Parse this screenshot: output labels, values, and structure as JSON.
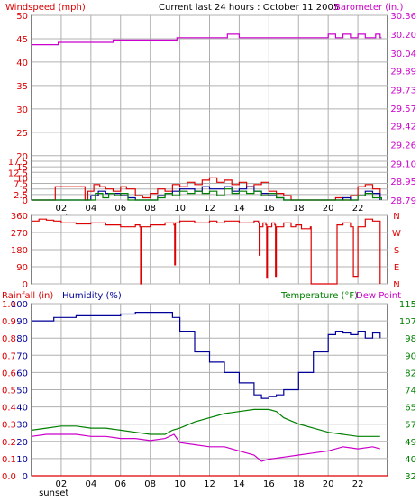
{
  "header": {
    "title": "Current last 24 hours : October 11 2005",
    "left_label": "Windspeed (mph)",
    "right_label": "Barometer (in.)"
  },
  "colors": {
    "red": "#dd0000",
    "magenta": "#cc00cc",
    "green": "#008000",
    "blue": "#000099",
    "grid": "#b0b0b0",
    "frame": "#000000"
  },
  "chart_data": [
    {
      "type": "line",
      "name": "wind-barometer",
      "xlabel_ticks": [
        "02",
        "04",
        "06",
        "08",
        "10",
        "12",
        "14",
        "16",
        "18",
        "20",
        "22"
      ],
      "x_annotation": "sunset",
      "left_axis": {
        "label": "Windspeed (mph)",
        "ticks": [
          0,
          2.5,
          5,
          7.5,
          10,
          12.5,
          15,
          17.5,
          20,
          25,
          30,
          35,
          40,
          45,
          50
        ]
      },
      "right_axis": {
        "label": "Barometer (in.)",
        "ticks": [
          28.79,
          28.95,
          29.1,
          29.26,
          29.42,
          29.57,
          29.73,
          29.89,
          30.04,
          30.2,
          30.36
        ]
      },
      "xlim": [
        0,
        24
      ],
      "series": [
        {
          "color": "magenta",
          "axis": "right",
          "x": [
            0,
            1,
            1.8,
            5.0,
            5.5,
            9.0,
            9.8,
            12.8,
            13.2,
            14.0,
            19.5,
            20.0,
            20.5,
            21.0,
            21.5,
            22.0,
            22.5,
            23.2,
            23.5,
            23.6
          ],
          "y": [
            30.11,
            30.11,
            30.13,
            30.13,
            30.15,
            30.15,
            30.17,
            30.17,
            30.2,
            30.17,
            30.17,
            30.2,
            30.17,
            30.2,
            30.17,
            30.2,
            30.17,
            30.2,
            30.17,
            30.17
          ]
        },
        {
          "color": "red",
          "axis": "left",
          "x": [
            0,
            1.5,
            1.6,
            3.6,
            3.8,
            4.2,
            4.6,
            5.0,
            5.5,
            6.0,
            6.4,
            7.0,
            7.5,
            8.0,
            8.5,
            9.0,
            9.5,
            10.0,
            10.5,
            11.0,
            11.5,
            12.0,
            12.5,
            13.0,
            13.5,
            14.0,
            14.5,
            15.0,
            15.5,
            16.0,
            16.5,
            17.0,
            17.5,
            18.5,
            19.0,
            20.0,
            20.5,
            21.0,
            21.5,
            22.0,
            22.5,
            23.0,
            23.5
          ],
          "y": [
            0,
            0,
            6,
            0,
            4,
            7,
            6,
            5,
            4,
            6,
            5,
            2,
            1,
            3,
            5,
            4,
            7,
            6,
            8,
            7,
            9,
            10,
            8,
            9,
            7,
            8,
            6,
            7,
            8,
            4,
            3,
            2,
            0,
            0,
            0,
            0,
            1,
            0,
            2,
            6,
            7,
            5,
            1
          ]
        },
        {
          "color": "blue",
          "axis": "left",
          "x": [
            0,
            3.6,
            4.0,
            4.5,
            5.0,
            5.5,
            6.0,
            6.5,
            7.0,
            8.0,
            8.5,
            9.0,
            9.5,
            10.0,
            10.5,
            11.0,
            11.5,
            12.0,
            12.5,
            13.0,
            13.5,
            14.0,
            14.5,
            15.0,
            15.5,
            16.0,
            16.5,
            17.0,
            19.0,
            20.5,
            21.0,
            21.5,
            22.0,
            22.5,
            23.0,
            23.5
          ],
          "y": [
            0,
            0,
            2,
            4,
            3,
            3,
            2,
            1,
            0,
            0,
            2,
            3,
            4,
            5,
            5,
            4,
            6,
            5,
            5,
            6,
            4,
            5,
            6,
            4,
            3,
            2,
            1,
            0,
            0,
            0,
            1,
            0,
            2,
            4,
            3,
            0
          ]
        },
        {
          "color": "green",
          "axis": "left",
          "x": [
            0,
            4.0,
            4.3,
            4.8,
            5.2,
            5.6,
            6.0,
            6.5,
            8.0,
            8.5,
            9.0,
            9.5,
            10.0,
            10.5,
            11.0,
            11.5,
            12.0,
            12.5,
            13.0,
            13.5,
            14.0,
            14.5,
            15.0,
            15.5,
            16.0,
            16.5,
            17.0,
            20.0,
            21.5,
            22.0,
            22.5,
            23.0,
            23.6
          ],
          "y": [
            0,
            0,
            3,
            1,
            3,
            2,
            3,
            0,
            0,
            1,
            3,
            2,
            4,
            3,
            4,
            3,
            4,
            2,
            5,
            3,
            4,
            3,
            4,
            2,
            3,
            1,
            0,
            0,
            0,
            2,
            3,
            1,
            0
          ]
        }
      ]
    },
    {
      "type": "line",
      "name": "wind-direction",
      "left_axis": {
        "ticks": [
          0,
          90,
          180,
          270,
          360
        ]
      },
      "right_axis": {
        "ticks": [
          "N",
          "E",
          "S",
          "W",
          "N"
        ]
      },
      "xlim": [
        0,
        24
      ],
      "series": [
        {
          "color": "red",
          "x": [
            0,
            0.5,
            1.0,
            1.5,
            2.0,
            3.0,
            4.0,
            5.0,
            6.0,
            7.0,
            7.3,
            7.35,
            7.4,
            8.0,
            9.0,
            9.6,
            9.65,
            9.7,
            10.0,
            11.0,
            12.0,
            12.5,
            13.0,
            14.0,
            15.0,
            15.3,
            15.35,
            15.4,
            15.6,
            15.8,
            15.85,
            15.9,
            16.2,
            16.4,
            16.45,
            16.5,
            17.0,
            17.5,
            17.8,
            18.2,
            18.8,
            18.85,
            19.5,
            20.0,
            20.5,
            20.6,
            21.0,
            21.5,
            21.7,
            22.0,
            22.5,
            23.0,
            23.5
          ],
          "y": [
            330,
            340,
            335,
            330,
            320,
            315,
            320,
            310,
            300,
            310,
            300,
            0,
            300,
            310,
            320,
            310,
            100,
            320,
            330,
            320,
            330,
            320,
            330,
            320,
            330,
            320,
            150,
            300,
            320,
            310,
            30,
            300,
            320,
            310,
            40,
            300,
            320,
            300,
            310,
            290,
            300,
            0,
            0,
            0,
            0,
            310,
            320,
            300,
            40,
            300,
            340,
            330,
            0
          ]
        }
      ]
    },
    {
      "type": "line",
      "name": "rain-humidity-temperature",
      "left_axis_rain": {
        "label": "Rainfall (in)",
        "ticks": [
          0.0,
          0.1,
          0.2,
          0.3,
          0.4,
          0.5,
          0.6,
          0.7,
          0.8,
          0.9,
          1.0
        ]
      },
      "left_axis_humidity": {
        "label": "Humidity (%)",
        "ticks": [
          0,
          10,
          20,
          30,
          40,
          50,
          60,
          70,
          80,
          90,
          100
        ]
      },
      "right_axis": {
        "label": "Temperature (°F)",
        "label2": "Dew Point",
        "ticks": [
          32,
          40,
          49,
          57,
          65,
          74,
          82,
          90,
          98,
          107,
          115
        ]
      },
      "xlim": [
        0,
        24
      ],
      "series": [
        {
          "color": "blue",
          "axis": "humidity",
          "x": [
            0,
            1.5,
            3.0,
            5.0,
            6.0,
            7.0,
            8.0,
            9.0,
            9.5,
            10.0,
            11.0,
            12.0,
            13.0,
            14.0,
            15.0,
            15.5,
            16.0,
            16.5,
            17.0,
            18.0,
            19.0,
            20.0,
            20.5,
            21.0,
            21.5,
            22.0,
            22.5,
            23.0,
            23.5
          ],
          "y": [
            90,
            92,
            93,
            93,
            94,
            95,
            95,
            95,
            92,
            84,
            72,
            66,
            60,
            54,
            47,
            45,
            46,
            47,
            50,
            60,
            72,
            82,
            84,
            83,
            82,
            84,
            80,
            83,
            80
          ]
        },
        {
          "color": "green",
          "axis": "temperature",
          "x": [
            0,
            1.0,
            2.0,
            3.0,
            4.0,
            5.0,
            6.0,
            7.0,
            8.0,
            9.0,
            9.5,
            10.0,
            11.0,
            12.0,
            13.0,
            14.0,
            15.0,
            16.0,
            16.5,
            17.0,
            18.0,
            19.0,
            20.0,
            21.0,
            22.0,
            23.0,
            23.5
          ],
          "y": [
            54,
            55,
            56,
            56,
            55,
            55,
            54,
            53,
            52,
            52,
            54,
            55,
            58,
            60,
            62,
            63,
            64,
            64,
            63,
            60,
            57,
            55,
            53,
            52,
            51,
            51,
            51
          ]
        },
        {
          "color": "magenta",
          "axis": "temperature",
          "x": [
            0,
            1.0,
            2.0,
            3.0,
            4.0,
            5.0,
            6.0,
            7.0,
            8.0,
            9.0,
            9.6,
            10.0,
            11.0,
            12.0,
            13.0,
            14.0,
            15.0,
            15.5,
            16.0,
            17.0,
            18.0,
            19.0,
            20.0,
            21.0,
            22.0,
            23.0,
            23.5
          ],
          "y": [
            51,
            52,
            52,
            52,
            51,
            51,
            50,
            50,
            49,
            50,
            52,
            48,
            47,
            46,
            46,
            44,
            42,
            39,
            40,
            41,
            42,
            43,
            44,
            46,
            45,
            46,
            45
          ]
        },
        {
          "color": "red",
          "axis": "rain",
          "x": [
            0,
            24
          ],
          "y": [
            0.0,
            0.0
          ]
        }
      ]
    }
  ]
}
